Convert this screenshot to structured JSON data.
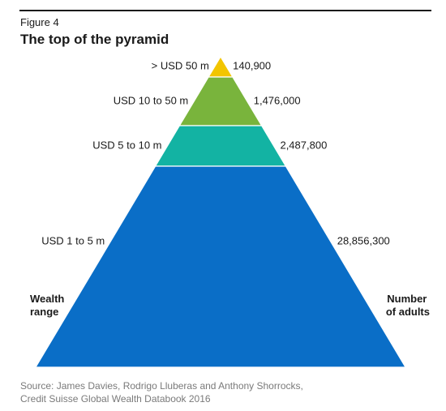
{
  "figure": {
    "label": "Figure 4",
    "title": "The top of the pyramid"
  },
  "chart_data": {
    "type": "pyramid",
    "tiers": [
      {
        "range": "> USD 50 m",
        "adults": 140900,
        "adults_label": "140,900",
        "color": "#f2c500"
      },
      {
        "range": "USD 10 to 50 m",
        "adults": 1476000,
        "adults_label": "1,476,000",
        "color": "#79b43c"
      },
      {
        "range": "USD 5 to 10 m",
        "adults": 2487800,
        "adults_label": "2,487,800",
        "color": "#13b3a3"
      },
      {
        "range": "USD 1 to 5 m",
        "adults": 28856300,
        "adults_label": "28,856,300",
        "color": "#0a6ec7"
      }
    ],
    "left_axis_label": [
      "Wealth",
      "range"
    ],
    "right_axis_label": [
      "Number",
      "of adults"
    ]
  },
  "source": {
    "line1": "Source: James Davies, Rodrigo Lluberas and Anthony Shorrocks,",
    "line2": "Credit Suisse Global Wealth Databook 2016"
  }
}
